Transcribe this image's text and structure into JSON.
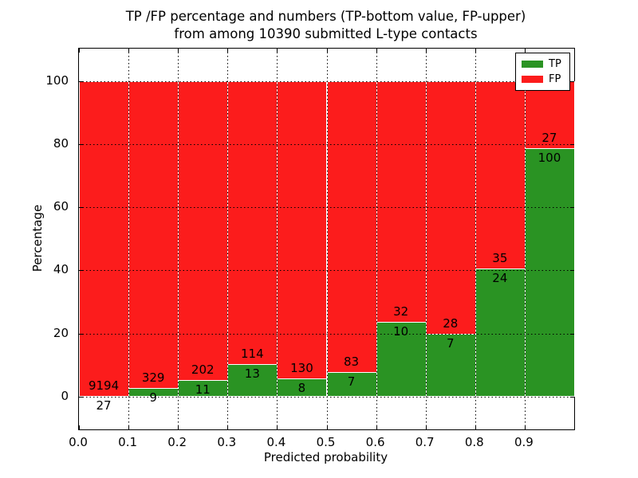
{
  "figure": {
    "title_line1": "TP /FP percentage and numbers (TP-bottom value, FP-upper)",
    "title_line2": "from among 10390 submitted L-type contacts"
  },
  "chart_data": {
    "type": "bar",
    "subtype": "stacked-percentage",
    "title": "TP /FP percentage and numbers (TP-bottom value, FP-upper) from among 10390 submitted L-type contacts",
    "xlabel": "Predicted probability",
    "ylabel": "Percentage",
    "total_contacts": 10390,
    "categories": [
      "0.0-0.1",
      "0.1-0.2",
      "0.2-0.3",
      "0.3-0.4",
      "0.4-0.5",
      "0.5-0.6",
      "0.6-0.7",
      "0.7-0.8",
      "0.8-0.9",
      "0.9-1.0"
    ],
    "series": [
      {
        "name": "TP",
        "color": "#2a9323",
        "values": [
          27,
          9,
          11,
          13,
          8,
          7,
          10,
          7,
          24,
          100
        ]
      },
      {
        "name": "FP",
        "color": "#fc1c1c",
        "values": [
          9194,
          329,
          202,
          114,
          130,
          83,
          32,
          28,
          35,
          27
        ]
      }
    ],
    "tp_percent_by_bin": [
      0.29,
      2.66,
      5.16,
      10.24,
      5.8,
      7.78,
      23.81,
      20.0,
      40.68,
      78.74
    ],
    "x_tick_labels": [
      "0.0",
      "0.1",
      "0.2",
      "0.3",
      "0.4",
      "0.5",
      "0.6",
      "0.7",
      "0.8",
      "0.9"
    ],
    "y_tick_values": [
      0,
      20,
      40,
      60,
      80,
      100
    ],
    "xlim": [
      0.0,
      1.0
    ],
    "ylim": [
      -10.4,
      110.3
    ],
    "grid": "dotted",
    "legend": {
      "position": "upper right"
    }
  }
}
